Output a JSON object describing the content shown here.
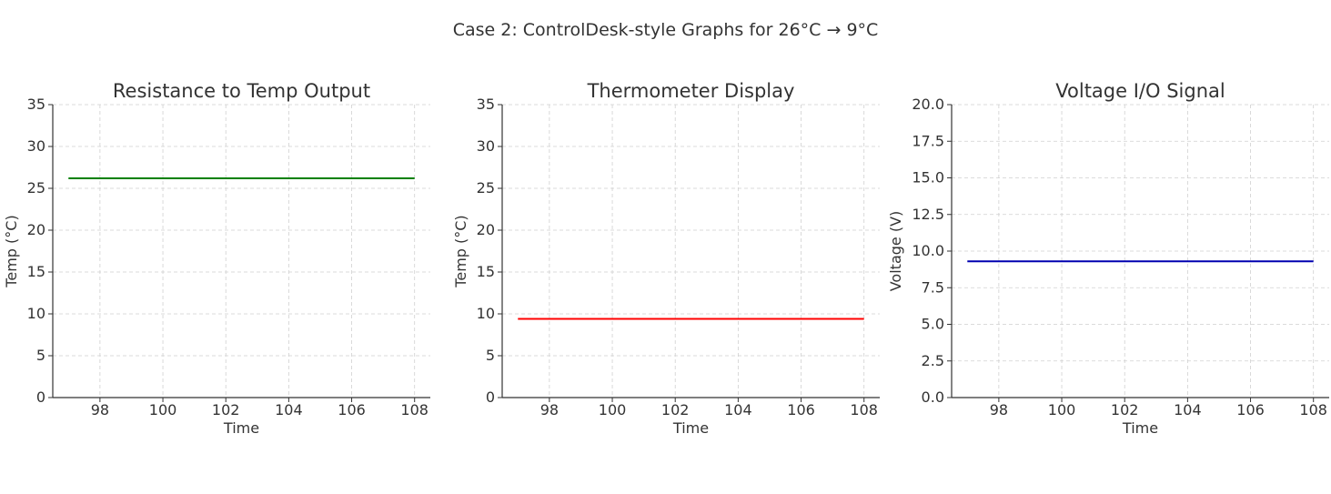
{
  "figure": {
    "title": "Case 2: ControlDesk-style Graphs for 26°C → 9°C"
  },
  "chart_data": [
    {
      "type": "line",
      "title": "Resistance to Temp Output",
      "xlabel": "Time",
      "ylabel": "Temp (°C)",
      "xlim": [
        96.5,
        108.5
      ],
      "ylim": [
        0,
        35
      ],
      "xticks": [
        98,
        100,
        102,
        104,
        106,
        108
      ],
      "yticks": [
        0,
        5,
        10,
        15,
        20,
        25,
        30,
        35
      ],
      "ytick_labels": [
        "0",
        "5",
        "10",
        "15",
        "20",
        "25",
        "30",
        "35"
      ],
      "grid": true,
      "series": [
        {
          "x": [
            97,
            108
          ],
          "y": [
            26.2,
            26.2
          ],
          "color": "#008000"
        }
      ]
    },
    {
      "type": "line",
      "title": "Thermometer Display",
      "xlabel": "Time",
      "ylabel": "Temp (°C)",
      "xlim": [
        96.5,
        108.5
      ],
      "ylim": [
        0,
        35
      ],
      "xticks": [
        98,
        100,
        102,
        104,
        106,
        108
      ],
      "yticks": [
        0,
        5,
        10,
        15,
        20,
        25,
        30,
        35
      ],
      "ytick_labels": [
        "0",
        "5",
        "10",
        "15",
        "20",
        "25",
        "30",
        "35"
      ],
      "grid": true,
      "series": [
        {
          "x": [
            97,
            108
          ],
          "y": [
            9.4,
            9.4
          ],
          "color": "#ff0000"
        }
      ]
    },
    {
      "type": "line",
      "title": "Voltage I/O Signal",
      "xlabel": "Time",
      "ylabel": "Voltage (V)",
      "xlim": [
        96.5,
        108.5
      ],
      "ylim": [
        0,
        20
      ],
      "xticks": [
        98,
        100,
        102,
        104,
        106,
        108
      ],
      "yticks": [
        0,
        2.5,
        5,
        7.5,
        10,
        12.5,
        15,
        17.5,
        20
      ],
      "ytick_labels": [
        "0.0",
        "2.5",
        "5.0",
        "7.5",
        "10.0",
        "12.5",
        "15.0",
        "17.5",
        "20.0"
      ],
      "grid": true,
      "series": [
        {
          "x": [
            97,
            108
          ],
          "y": [
            9.3,
            9.3
          ],
          "color": "#0000b0"
        }
      ]
    }
  ]
}
